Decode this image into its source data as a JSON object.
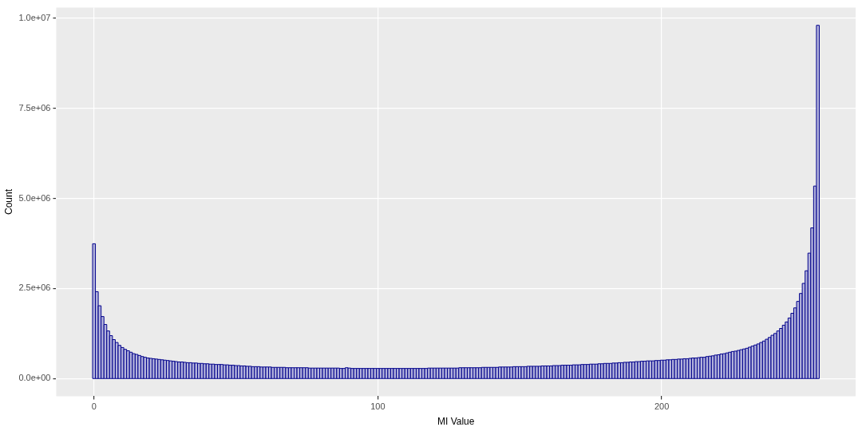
{
  "chart_data": {
    "type": "histogram",
    "xlabel": "MI Value",
    "ylabel": "Count",
    "color": "#00008b",
    "grid": true,
    "legend": false,
    "xlim": [
      -13.3,
      268.3
    ],
    "xticks": [
      0,
      100,
      200
    ],
    "ylim": [
      -490000,
      10290000
    ],
    "yticks": [
      {
        "value": 0,
        "label": "0.0e+00"
      },
      {
        "value": 2500000,
        "label": "2.5e+06"
      },
      {
        "value": 5000000,
        "label": "5.0e+06"
      },
      {
        "value": 7500000,
        "label": "7.5e+06"
      },
      {
        "value": 10000000,
        "label": "1.0e+07"
      }
    ],
    "bins": [
      -0.5,
      0.5,
      1.5,
      2.5,
      3.5,
      4.5,
      5.5,
      6.5,
      7.5,
      8.5,
      9.5,
      10.5,
      11.5,
      12.5,
      13.5,
      14.5,
      15.5,
      16.5,
      17.5,
      18.5,
      19.5,
      20.5,
      21.5,
      22.5,
      23.5,
      24.5,
      25.5,
      26.5,
      27.5,
      28.5,
      29.5,
      30.5,
      31.5,
      32.5,
      33.5,
      34.5,
      35.5,
      36.5,
      37.5,
      38.5,
      39.5,
      40.5,
      41.5,
      42.5,
      43.5,
      44.5,
      45.5,
      46.5,
      47.5,
      48.5,
      49.5,
      50.5,
      51.5,
      52.5,
      53.5,
      54.5,
      55.5,
      56.5,
      57.5,
      58.5,
      59.5,
      60.5,
      61.5,
      62.5,
      63.5,
      64.5,
      65.5,
      66.5,
      67.5,
      68.5,
      69.5,
      70.5,
      71.5,
      72.5,
      73.5,
      74.5,
      75.5,
      76.5,
      77.5,
      78.5,
      79.5,
      80.5,
      81.5,
      82.5,
      83.5,
      84.5,
      85.5,
      86.5,
      87.5,
      88.5,
      89.5,
      90.5,
      91.5,
      92.5,
      93.5,
      94.5,
      95.5,
      96.5,
      97.5,
      98.5,
      99.5,
      100.5,
      101.5,
      102.5,
      103.5,
      104.5,
      105.5,
      106.5,
      107.5,
      108.5,
      109.5,
      110.5,
      111.5,
      112.5,
      113.5,
      114.5,
      115.5,
      116.5,
      117.5,
      118.5,
      119.5,
      120.5,
      121.5,
      122.5,
      123.5,
      124.5,
      125.5,
      126.5,
      127.5,
      128.5,
      129.5,
      130.5,
      131.5,
      132.5,
      133.5,
      134.5,
      135.5,
      136.5,
      137.5,
      138.5,
      139.5,
      140.5,
      141.5,
      142.5,
      143.5,
      144.5,
      145.5,
      146.5,
      147.5,
      148.5,
      149.5,
      150.5,
      151.5,
      152.5,
      153.5,
      154.5,
      155.5,
      156.5,
      157.5,
      158.5,
      159.5,
      160.5,
      161.5,
      162.5,
      163.5,
      164.5,
      165.5,
      166.5,
      167.5,
      168.5,
      169.5,
      170.5,
      171.5,
      172.5,
      173.5,
      174.5,
      175.5,
      176.5,
      177.5,
      178.5,
      179.5,
      180.5,
      181.5,
      182.5,
      183.5,
      184.5,
      185.5,
      186.5,
      187.5,
      188.5,
      189.5,
      190.5,
      191.5,
      192.5,
      193.5,
      194.5,
      195.5,
      196.5,
      197.5,
      198.5,
      199.5,
      200.5,
      201.5,
      202.5,
      203.5,
      204.5,
      205.5,
      206.5,
      207.5,
      208.5,
      209.5,
      210.5,
      211.5,
      212.5,
      213.5,
      214.5,
      215.5,
      216.5,
      217.5,
      218.5,
      219.5,
      220.5,
      221.5,
      222.5,
      223.5,
      224.5,
      225.5,
      226.5,
      227.5,
      228.5,
      229.5,
      230.5,
      231.5,
      232.5,
      233.5,
      234.5,
      235.5,
      236.5,
      237.5,
      238.5,
      239.5,
      240.5,
      241.5,
      242.5,
      243.5,
      244.5,
      245.5,
      246.5,
      247.5,
      248.5,
      249.5,
      250.5,
      251.5,
      252.5,
      253.5,
      254.5,
      255.5
    ],
    "values": [
      3740000,
      2410000,
      2020000,
      1720000,
      1500000,
      1320000,
      1190000,
      1080000,
      1000000,
      920000,
      860000,
      810000,
      770000,
      730000,
      690000,
      670000,
      640000,
      610000,
      590000,
      570000,
      560000,
      550000,
      540000,
      530000,
      520000,
      510000,
      500000,
      490000,
      480000,
      470000,
      460000,
      460000,
      450000,
      440000,
      440000,
      430000,
      430000,
      420000,
      420000,
      410000,
      410000,
      400000,
      400000,
      390000,
      390000,
      390000,
      380000,
      380000,
      370000,
      370000,
      360000,
      360000,
      350000,
      350000,
      340000,
      340000,
      330000,
      330000,
      330000,
      320000,
      320000,
      320000,
      320000,
      310000,
      310000,
      310000,
      310000,
      310000,
      300000,
      300000,
      300000,
      300000,
      300000,
      300000,
      300000,
      300000,
      290000,
      290000,
      290000,
      290000,
      290000,
      290000,
      290000,
      290000,
      290000,
      290000,
      290000,
      280000,
      280000,
      300000,
      290000,
      280000,
      280000,
      280000,
      280000,
      280000,
      280000,
      280000,
      280000,
      280000,
      280000,
      280000,
      280000,
      280000,
      280000,
      280000,
      280000,
      280000,
      280000,
      280000,
      280000,
      280000,
      280000,
      280000,
      280000,
      280000,
      280000,
      280000,
      290000,
      290000,
      290000,
      290000,
      290000,
      290000,
      290000,
      290000,
      290000,
      290000,
      290000,
      300000,
      300000,
      300000,
      300000,
      300000,
      300000,
      300000,
      300000,
      310000,
      310000,
      310000,
      310000,
      310000,
      310000,
      320000,
      320000,
      320000,
      320000,
      320000,
      330000,
      330000,
      330000,
      330000,
      330000,
      340000,
      340000,
      340000,
      340000,
      340000,
      350000,
      350000,
      350000,
      350000,
      360000,
      360000,
      360000,
      370000,
      370000,
      370000,
      370000,
      380000,
      380000,
      380000,
      390000,
      390000,
      390000,
      400000,
      400000,
      400000,
      410000,
      410000,
      420000,
      420000,
      420000,
      430000,
      430000,
      440000,
      440000,
      450000,
      450000,
      460000,
      460000,
      470000,
      470000,
      480000,
      480000,
      490000,
      490000,
      490000,
      500000,
      500000,
      510000,
      510000,
      520000,
      520000,
      530000,
      530000,
      540000,
      540000,
      550000,
      550000,
      560000,
      570000,
      570000,
      580000,
      590000,
      590000,
      610000,
      620000,
      630000,
      650000,
      660000,
      680000,
      690000,
      710000,
      730000,
      750000,
      760000,
      780000,
      800000,
      820000,
      840000,
      870000,
      900000,
      930000,
      960000,
      1000000,
      1040000,
      1090000,
      1140000,
      1200000,
      1250000,
      1320000,
      1390000,
      1480000,
      1570000,
      1680000,
      1810000,
      1960000,
      2140000,
      2360000,
      2640000,
      2990000,
      3480000,
      4180000,
      5340000,
      9800000
    ]
  }
}
